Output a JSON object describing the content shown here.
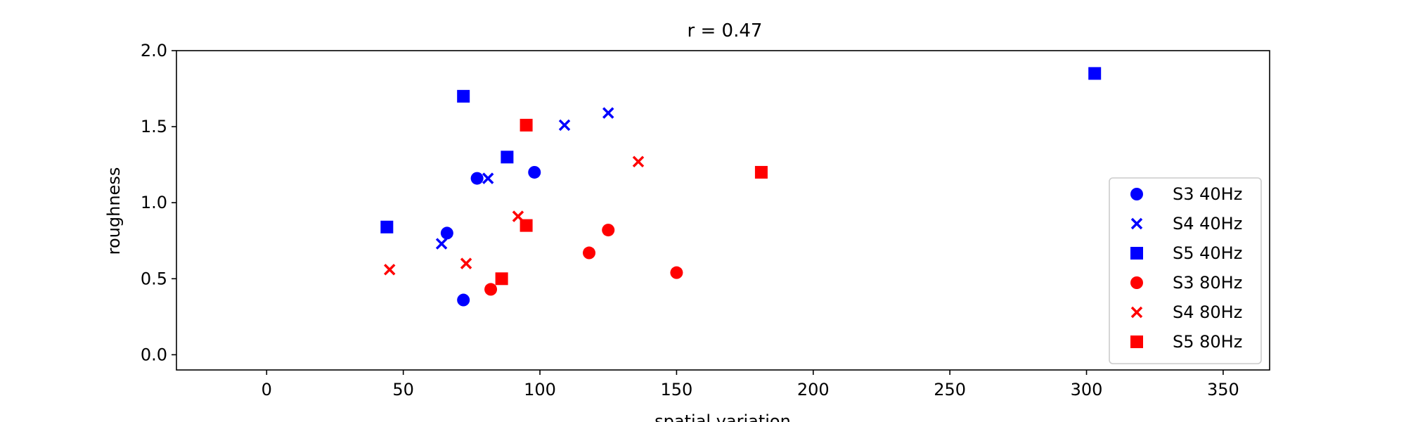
{
  "chart_data": {
    "type": "scatter",
    "title": "r = 0.47",
    "xlabel": "spatial variation",
    "ylabel": "roughness",
    "xlim": [
      -33,
      367
    ],
    "ylim": [
      -0.1,
      2.0
    ],
    "xticks": [
      0,
      50,
      100,
      150,
      200,
      250,
      300,
      350
    ],
    "xtick_labels": [
      "0",
      "50",
      "100",
      "150",
      "200",
      "250",
      "300",
      "350"
    ],
    "yticks": [
      0.0,
      0.5,
      1.0,
      1.5,
      2.0
    ],
    "ytick_labels": [
      "0.0",
      "0.5",
      "1.0",
      "1.5",
      "2.0"
    ],
    "grid": false,
    "legend_position": "lower-right",
    "series": [
      {
        "name": "S3 40Hz",
        "color": "#0000ff",
        "marker": "circle",
        "points": [
          {
            "x": 77,
            "y": 1.16
          },
          {
            "x": 98,
            "y": 1.2
          },
          {
            "x": 66,
            "y": 0.8
          },
          {
            "x": 72,
            "y": 0.36
          }
        ]
      },
      {
        "name": "S4 40Hz",
        "color": "#0000ff",
        "marker": "x",
        "points": [
          {
            "x": 125,
            "y": 1.59
          },
          {
            "x": 109,
            "y": 1.51
          },
          {
            "x": 81,
            "y": 1.16
          },
          {
            "x": 64,
            "y": 0.73
          }
        ]
      },
      {
        "name": "S5 40Hz",
        "color": "#0000ff",
        "marker": "square",
        "points": [
          {
            "x": 72,
            "y": 1.7
          },
          {
            "x": 88,
            "y": 1.3
          },
          {
            "x": 44,
            "y": 0.84
          },
          {
            "x": 303,
            "y": 1.85
          }
        ]
      },
      {
        "name": "S3 80Hz",
        "color": "#ff0000",
        "marker": "circle",
        "points": [
          {
            "x": 125,
            "y": 0.82
          },
          {
            "x": 118,
            "y": 0.67
          },
          {
            "x": 150,
            "y": 0.54
          },
          {
            "x": 82,
            "y": 0.43
          }
        ]
      },
      {
        "name": "S4 80Hz",
        "color": "#ff0000",
        "marker": "x",
        "points": [
          {
            "x": 136,
            "y": 1.27
          },
          {
            "x": 92,
            "y": 0.91
          },
          {
            "x": 45,
            "y": 0.56
          },
          {
            "x": 73,
            "y": 0.6
          }
        ]
      },
      {
        "name": "S5 80Hz",
        "color": "#ff0000",
        "marker": "square",
        "points": [
          {
            "x": 95,
            "y": 1.51
          },
          {
            "x": 181,
            "y": 1.2
          },
          {
            "x": 95,
            "y": 0.85
          },
          {
            "x": 86,
            "y": 0.5
          }
        ]
      }
    ]
  }
}
